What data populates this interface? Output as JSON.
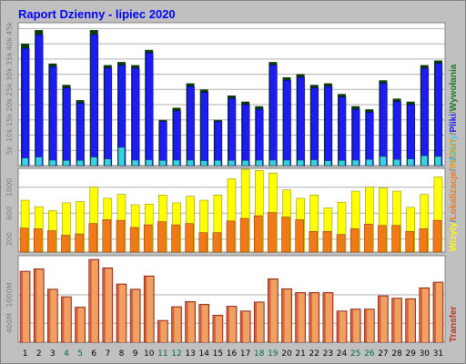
{
  "title": "Raport Dzienny -  lipiec 2020",
  "colors": {
    "background": "#c0c0c0",
    "plot_bg": "#ffffff",
    "title": "#0000ff",
    "weekday_label": "#000000",
    "weekend_label": "#006b4a",
    "hits_fill": "#1d1df2",
    "hits_dark": "#0a3a0a",
    "files": "#1d1df2",
    "pages": "#3ad0e6",
    "visits": "#e6c65a",
    "sites": "#ffff00",
    "kbytes": "#f07a16",
    "transfer": "#d86040",
    "transfer_hi": "#f0a060"
  },
  "chart_data": [
    {
      "type": "bar",
      "id": "hits",
      "ylim": [
        0,
        46000
      ],
      "yticks": [
        "5k",
        "10k",
        "15k",
        "20k",
        "25k",
        "30k",
        "35k",
        "40k",
        "45k"
      ],
      "series": [
        {
          "name": "Wywołania",
          "values": [
            40000,
            44500,
            33500,
            26500,
            21500,
            44500,
            33000,
            34000,
            33000,
            38000,
            15000,
            19000,
            27000,
            25000,
            15000,
            23000,
            21000,
            19500,
            34000,
            29000,
            30000,
            26500,
            27000,
            23500,
            19500,
            18500,
            28000,
            22000,
            21000,
            33000,
            34500
          ]
        },
        {
          "name": "Pliki",
          "values": [
            38500,
            43000,
            32500,
            25500,
            20500,
            43000,
            32000,
            33000,
            32000,
            37000,
            14500,
            18000,
            26000,
            24000,
            14500,
            22000,
            20000,
            18500,
            33000,
            28000,
            29000,
            25500,
            26000,
            22500,
            18500,
            17500,
            27000,
            21000,
            20000,
            32000,
            33500
          ]
        },
        {
          "name": "Strony",
          "values": [
            2500,
            2800,
            1800,
            1700,
            1700,
            2800,
            2200,
            6000,
            1800,
            1900,
            1700,
            1800,
            1800,
            1600,
            1700,
            1700,
            1700,
            1800,
            1800,
            1800,
            1800,
            1900,
            1600,
            1700,
            1800,
            2000,
            3000,
            2000,
            2200,
            3200,
            3000
          ]
        }
      ],
      "legend": [
        "Wywołania",
        "Pliki",
        "Strony"
      ]
    },
    {
      "type": "bar",
      "id": "visits",
      "ylim": [
        0,
        1250
      ],
      "yticks": [
        "200",
        "600",
        "1000"
      ],
      "series": [
        {
          "name": "Wizyty",
          "values": [
            800,
            700,
            640,
            760,
            780,
            1000,
            830,
            890,
            730,
            740,
            880,
            760,
            860,
            800,
            880,
            1130,
            1280,
            1260,
            1220,
            960,
            830,
            880,
            680,
            770,
            940,
            1000,
            990,
            940,
            690,
            890,
            1160
          ]
        },
        {
          "name": "Lokalizacje",
          "values": [
            370,
            360,
            330,
            260,
            280,
            440,
            500,
            490,
            380,
            420,
            470,
            420,
            440,
            300,
            300,
            480,
            520,
            560,
            610,
            540,
            500,
            320,
            320,
            270,
            360,
            430,
            410,
            410,
            320,
            360,
            490
          ]
        }
      ],
      "legend": [
        "Wizyty",
        "Lokalizacje",
        "IN",
        "OUT"
      ]
    },
    {
      "type": "bar",
      "id": "transfer",
      "ylim": [
        0,
        1750
      ],
      "yticks": [
        "400M",
        "1000M"
      ],
      "categories": [
        "1",
        "2",
        "3",
        "4",
        "5",
        "6",
        "7",
        "8",
        "9",
        "10",
        "11",
        "12",
        "13",
        "14",
        "15",
        "16",
        "17",
        "18",
        "19",
        "20",
        "21",
        "22",
        "23",
        "24",
        "25",
        "26",
        "27",
        "28",
        "29",
        "30",
        "31"
      ],
      "weekend_days": [
        4,
        5,
        11,
        12,
        18,
        19,
        25,
        26
      ],
      "series": [
        {
          "name": "Transfer",
          "values": [
            1500,
            1550,
            1120,
            960,
            740,
            1750,
            1570,
            1230,
            1120,
            1400,
            460,
            750,
            860,
            800,
            570,
            760,
            660,
            850,
            1340,
            1130,
            1050,
            1050,
            1050,
            660,
            700,
            700,
            980,
            930,
            920,
            1150,
            1270
          ]
        }
      ],
      "legend": [
        "Transfer"
      ]
    }
  ]
}
